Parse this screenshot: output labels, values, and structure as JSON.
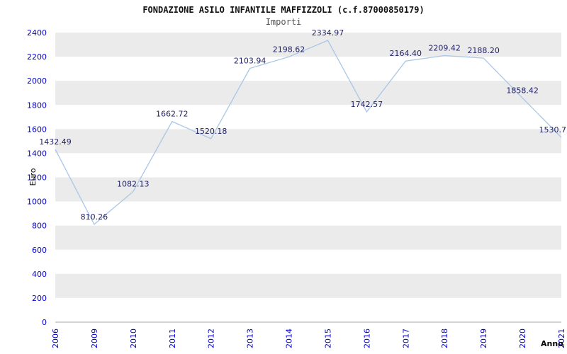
{
  "header": {
    "title": "FONDAZIONE ASILO INFANTILE MAFFIZZOLI (c.f.87000850179)",
    "subtitle": "Importi"
  },
  "chart_data": {
    "type": "line",
    "title": "FONDAZIONE ASILO INFANTILE MAFFIZZOLI (c.f.87000850179)",
    "subtitle": "Importi",
    "xlabel": "Anno",
    "ylabel": "Euro",
    "x": [
      "2006",
      "2009",
      "2010",
      "2011",
      "2012",
      "2013",
      "2014",
      "2015",
      "2016",
      "2017",
      "2018",
      "2019",
      "2020",
      "2021"
    ],
    "values": [
      1432.49,
      810.26,
      1082.13,
      1662.72,
      1520.18,
      2103.94,
      2198.62,
      2334.97,
      1742.57,
      2164.4,
      2209.42,
      2188.2,
      1858.42,
      1530.7
    ],
    "labels": [
      "1432.49",
      "810.26",
      "1082.13",
      "1662.72",
      "1520.18",
      "2103.94",
      "2198.62",
      "2334.97",
      "1742.57",
      "2164.40",
      "2209.42",
      "2188.20",
      "1858.42",
      "1530.7"
    ],
    "ylim": [
      0,
      2400
    ],
    "ytick_step": 200,
    "grid": "horizontal-alternating-bands",
    "legend": "none",
    "colors": {
      "line": "#a9c6e6",
      "tick_text": "#0000cc",
      "value_label": "#222266",
      "band": "#ebebeb",
      "background": "#ffffff",
      "axis": "#aaaaaa",
      "axis_label": "#000000"
    }
  }
}
